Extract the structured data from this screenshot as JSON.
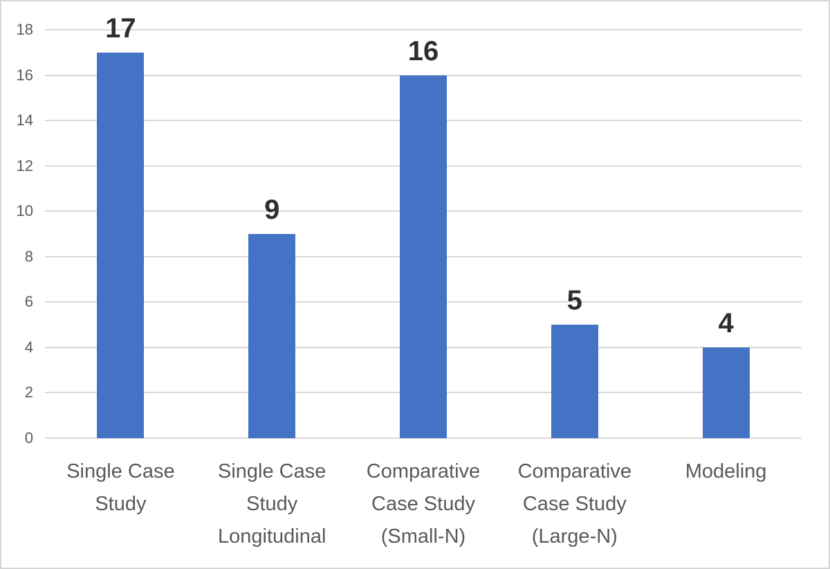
{
  "chart_data": {
    "type": "bar",
    "title": "",
    "xlabel": "",
    "ylabel": "",
    "categories": [
      "Single Case Study",
      "Single Case Study Longitudinal",
      "Comparative Case Study (Small-N)",
      "Comparative Case Study (Large-N)",
      "Modeling"
    ],
    "category_label_lines": [
      [
        "Single Case",
        "Study"
      ],
      [
        "Single Case",
        "Study",
        "Longitudinal"
      ],
      [
        "Comparative",
        "Case Study",
        "(Small-N)"
      ],
      [
        "Comparative",
        "Case Study",
        "(Large-N)"
      ],
      [
        "Modeling"
      ]
    ],
    "values": [
      17,
      9,
      16,
      5,
      4
    ],
    "data_labels": [
      "17",
      "9",
      "16",
      "5",
      "4"
    ],
    "ylim": [
      0,
      18
    ],
    "yticks": [
      0,
      2,
      4,
      6,
      8,
      10,
      12,
      14,
      16,
      18
    ],
    "grid": true,
    "legend": false,
    "colors": {
      "bar": "#4472C4",
      "gridline": "#D9D9D9",
      "axis_text": "#595959",
      "data_label": "#2E2E2E",
      "frame_border": "#D6D6D6",
      "background": "#FFFFFF"
    }
  }
}
